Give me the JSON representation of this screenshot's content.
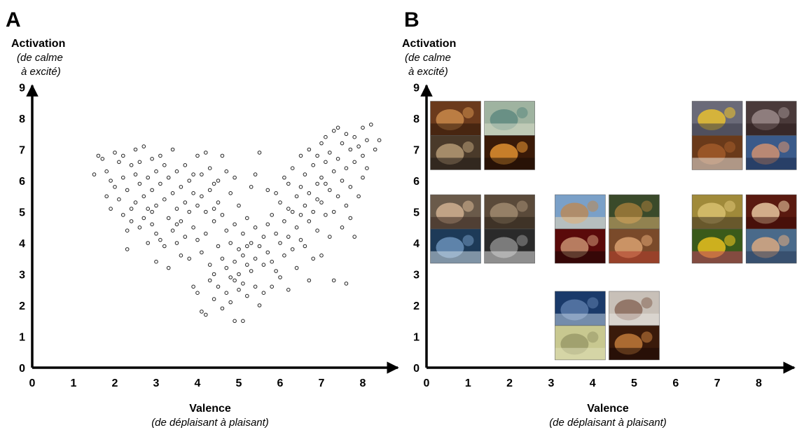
{
  "panels": {
    "a": {
      "letter": "A",
      "ylabel": "Activation",
      "ylabel_sub": [
        "(de calme",
        "à excité)"
      ],
      "xlabel": "Valence",
      "xlabel_sub": "(de déplaisant à plaisant)"
    },
    "b": {
      "letter": "B",
      "ylabel": "Activation",
      "ylabel_sub": [
        "(de calme",
        "à excité)"
      ],
      "xlabel": "Valence",
      "xlabel_sub": "(de déplaisant à plaisant)"
    }
  },
  "chart_data": [
    {
      "type": "scatter",
      "marker": "open-circle",
      "xlim": [
        0,
        9
      ],
      "ylim": [
        0,
        9
      ],
      "x_ticks": [
        0,
        1,
        2,
        3,
        4,
        5,
        6,
        7,
        8
      ],
      "y_ticks": [
        0,
        1,
        2,
        3,
        4,
        5,
        6,
        7,
        8,
        9
      ],
      "xlabel": "Valence",
      "ylabel": "Activation",
      "grid": false,
      "points": [
        [
          1.5,
          6.2
        ],
        [
          1.6,
          6.8
        ],
        [
          1.7,
          6.7
        ],
        [
          1.8,
          6.3
        ],
        [
          1.8,
          5.5
        ],
        [
          1.9,
          6.0
        ],
        [
          1.9,
          5.1
        ],
        [
          2.0,
          6.9
        ],
        [
          2.0,
          5.8
        ],
        [
          2.1,
          6.6
        ],
        [
          2.1,
          5.4
        ],
        [
          2.2,
          6.8
        ],
        [
          2.2,
          6.1
        ],
        [
          2.2,
          4.9
        ],
        [
          2.3,
          5.7
        ],
        [
          2.3,
          4.4
        ],
        [
          2.3,
          3.8
        ],
        [
          2.4,
          6.5
        ],
        [
          2.4,
          5.1
        ],
        [
          2.4,
          4.7
        ],
        [
          2.5,
          7.0
        ],
        [
          2.5,
          6.2
        ],
        [
          2.5,
          5.3
        ],
        [
          2.6,
          6.6
        ],
        [
          2.6,
          5.9
        ],
        [
          2.6,
          4.5
        ],
        [
          2.7,
          7.1
        ],
        [
          2.7,
          5.5
        ],
        [
          2.7,
          4.8
        ],
        [
          2.8,
          6.1
        ],
        [
          2.8,
          5.1
        ],
        [
          2.8,
          4.0
        ],
        [
          2.9,
          6.7
        ],
        [
          2.9,
          5.7
        ],
        [
          2.9,
          4.6
        ],
        [
          3.0,
          6.3
        ],
        [
          3.0,
          5.2
        ],
        [
          3.0,
          4.3
        ],
        [
          3.0,
          3.4
        ],
        [
          3.1,
          6.8
        ],
        [
          3.1,
          5.9
        ],
        [
          3.1,
          4.1
        ],
        [
          3.2,
          6.5
        ],
        [
          3.2,
          5.4
        ],
        [
          3.2,
          3.9
        ],
        [
          3.3,
          6.1
        ],
        [
          3.3,
          4.8
        ],
        [
          3.3,
          3.2
        ],
        [
          3.4,
          7.0
        ],
        [
          3.4,
          5.6
        ],
        [
          3.4,
          4.4
        ],
        [
          3.5,
          6.3
        ],
        [
          3.5,
          5.1
        ],
        [
          3.5,
          4.0
        ],
        [
          3.6,
          5.8
        ],
        [
          3.6,
          4.7
        ],
        [
          3.6,
          3.6
        ],
        [
          3.7,
          6.5
        ],
        [
          3.7,
          5.3
        ],
        [
          3.7,
          4.2
        ],
        [
          3.8,
          6.0
        ],
        [
          3.8,
          5.0
        ],
        [
          3.8,
          3.5
        ],
        [
          3.9,
          5.6
        ],
        [
          3.9,
          4.5
        ],
        [
          3.9,
          2.6
        ],
        [
          4.0,
          6.8
        ],
        [
          4.0,
          5.2
        ],
        [
          4.0,
          4.1
        ],
        [
          4.0,
          2.4
        ],
        [
          4.1,
          6.2
        ],
        [
          4.1,
          5.5
        ],
        [
          4.1,
          3.7
        ],
        [
          4.1,
          1.8
        ],
        [
          4.2,
          6.9
        ],
        [
          4.2,
          5.0
        ],
        [
          4.2,
          4.3
        ],
        [
          4.2,
          1.7
        ],
        [
          4.3,
          6.4
        ],
        [
          4.3,
          5.7
        ],
        [
          4.3,
          3.3
        ],
        [
          4.3,
          2.8
        ],
        [
          4.4,
          5.9
        ],
        [
          4.4,
          4.7
        ],
        [
          4.4,
          3.0
        ],
        [
          4.4,
          2.2
        ],
        [
          4.5,
          6.0
        ],
        [
          4.5,
          5.3
        ],
        [
          4.5,
          3.9
        ],
        [
          4.5,
          2.6
        ],
        [
          4.6,
          6.8
        ],
        [
          4.6,
          4.9
        ],
        [
          4.6,
          3.5
        ],
        [
          4.6,
          1.9
        ],
        [
          4.7,
          6.3
        ],
        [
          4.7,
          4.4
        ],
        [
          4.7,
          3.2
        ],
        [
          4.7,
          2.4
        ],
        [
          4.8,
          5.6
        ],
        [
          4.8,
          4.0
        ],
        [
          4.8,
          2.9
        ],
        [
          4.8,
          2.1
        ],
        [
          4.9,
          6.1
        ],
        [
          4.9,
          4.6
        ],
        [
          4.9,
          3.4
        ],
        [
          4.9,
          1.5
        ],
        [
          5.0,
          5.2
        ],
        [
          5.0,
          3.8
        ],
        [
          5.0,
          3.0
        ],
        [
          5.0,
          2.5
        ],
        [
          5.1,
          4.3
        ],
        [
          5.1,
          3.6
        ],
        [
          5.1,
          2.7
        ],
        [
          5.1,
          1.5
        ],
        [
          5.2,
          4.8
        ],
        [
          5.2,
          3.3
        ],
        [
          5.2,
          2.3
        ],
        [
          5.3,
          5.8
        ],
        [
          5.3,
          4.0
        ],
        [
          5.3,
          3.1
        ],
        [
          5.4,
          6.2
        ],
        [
          5.4,
          4.5
        ],
        [
          5.4,
          3.5
        ],
        [
          5.4,
          2.6
        ],
        [
          5.5,
          6.9
        ],
        [
          5.5,
          3.9
        ],
        [
          5.5,
          2.0
        ],
        [
          5.6,
          4.2
        ],
        [
          5.6,
          3.3
        ],
        [
          5.7,
          5.7
        ],
        [
          5.7,
          4.6
        ],
        [
          5.7,
          3.7
        ],
        [
          5.8,
          4.9
        ],
        [
          5.8,
          3.4
        ],
        [
          5.8,
          2.6
        ],
        [
          5.9,
          5.6
        ],
        [
          5.9,
          4.3
        ],
        [
          5.9,
          3.1
        ],
        [
          6.0,
          5.3
        ],
        [
          6.0,
          4.0
        ],
        [
          6.0,
          2.9
        ],
        [
          6.1,
          6.1
        ],
        [
          6.1,
          4.7
        ],
        [
          6.1,
          3.6
        ],
        [
          6.2,
          5.1
        ],
        [
          6.2,
          4.2
        ],
        [
          6.2,
          2.5
        ],
        [
          6.3,
          6.4
        ],
        [
          6.3,
          5.0
        ],
        [
          6.3,
          3.8
        ],
        [
          6.4,
          5.5
        ],
        [
          6.4,
          4.5
        ],
        [
          6.4,
          3.2
        ],
        [
          6.5,
          6.8
        ],
        [
          6.5,
          5.8
        ],
        [
          6.5,
          4.1
        ],
        [
          6.6,
          6.2
        ],
        [
          6.6,
          5.2
        ],
        [
          6.6,
          3.9
        ],
        [
          6.7,
          7.0
        ],
        [
          6.7,
          5.6
        ],
        [
          6.7,
          4.7
        ],
        [
          6.7,
          2.8
        ],
        [
          6.8,
          6.5
        ],
        [
          6.8,
          5.0
        ],
        [
          6.8,
          3.5
        ],
        [
          6.9,
          6.8
        ],
        [
          6.9,
          5.9
        ],
        [
          6.9,
          4.4
        ],
        [
          7.0,
          7.2
        ],
        [
          7.0,
          6.1
        ],
        [
          7.0,
          5.3
        ],
        [
          7.0,
          3.6
        ],
        [
          7.1,
          7.4
        ],
        [
          7.1,
          6.6
        ],
        [
          7.1,
          4.9
        ],
        [
          7.2,
          6.9
        ],
        [
          7.2,
          5.7
        ],
        [
          7.2,
          4.2
        ],
        [
          7.3,
          7.6
        ],
        [
          7.3,
          6.3
        ],
        [
          7.3,
          5.0
        ],
        [
          7.3,
          2.8
        ],
        [
          7.4,
          7.7
        ],
        [
          7.4,
          6.7
        ],
        [
          7.4,
          5.5
        ],
        [
          7.5,
          7.2
        ],
        [
          7.5,
          6.0
        ],
        [
          7.5,
          4.5
        ],
        [
          7.6,
          7.5
        ],
        [
          7.6,
          6.4
        ],
        [
          7.6,
          5.2
        ],
        [
          7.6,
          2.7
        ],
        [
          7.7,
          7.0
        ],
        [
          7.7,
          5.8
        ],
        [
          7.7,
          4.8
        ],
        [
          7.8,
          7.4
        ],
        [
          7.8,
          6.6
        ],
        [
          7.8,
          4.2
        ],
        [
          7.9,
          7.1
        ],
        [
          7.9,
          5.5
        ],
        [
          8.0,
          7.7
        ],
        [
          8.0,
          6.8
        ],
        [
          8.0,
          6.1
        ],
        [
          8.1,
          7.3
        ],
        [
          8.1,
          6.4
        ],
        [
          8.2,
          7.8
        ],
        [
          8.3,
          7.0
        ],
        [
          8.4,
          7.3
        ],
        [
          6.2,
          5.9
        ],
        [
          5.2,
          3.9
        ],
        [
          4.9,
          2.8
        ],
        [
          5.6,
          2.4
        ],
        [
          6.5,
          4.9
        ],
        [
          6.9,
          5.4
        ],
        [
          7.1,
          5.9
        ],
        [
          3.5,
          4.6
        ],
        [
          2.9,
          5.0
        ],
        [
          4.4,
          5.1
        ],
        [
          3.9,
          6.2
        ]
      ]
    },
    {
      "type": "scatter",
      "marker": "thumbnail-image",
      "xlim": [
        0,
        9
      ],
      "ylim": [
        0,
        9
      ],
      "x_ticks": [
        0,
        1,
        2,
        3,
        4,
        5,
        6,
        7,
        8
      ],
      "y_ticks": [
        0,
        1,
        2,
        3,
        4,
        5,
        6,
        7,
        8,
        9
      ],
      "xlabel": "Valence",
      "ylabel": "Activation",
      "grid": false,
      "points": [
        {
          "x": 0.7,
          "y": 8.0,
          "image": "shirtless-man-photo",
          "colors": [
            "#6b3a1c",
            "#c98a4a",
            "#2b160a"
          ]
        },
        {
          "x": 2.0,
          "y": 8.0,
          "image": "snake-photo",
          "colors": [
            "#9fb3a0",
            "#5f8a80",
            "#d8ddc9"
          ]
        },
        {
          "x": 0.7,
          "y": 6.9,
          "image": "attack-scene-photo",
          "colors": [
            "#4a3a2a",
            "#b49a74",
            "#1f1a15"
          ]
        },
        {
          "x": 2.0,
          "y": 6.9,
          "image": "fire-scene-photo",
          "colors": [
            "#3a1a08",
            "#e09030",
            "#1a0c05"
          ]
        },
        {
          "x": 0.7,
          "y": 5.0,
          "image": "couple-argument-photo",
          "colors": [
            "#6a5a4a",
            "#d0b090",
            "#3a2a22"
          ]
        },
        {
          "x": 2.0,
          "y": 5.0,
          "image": "crowd-people-photo",
          "colors": [
            "#5a4a3a",
            "#a08a70",
            "#2a2018"
          ]
        },
        {
          "x": 0.7,
          "y": 3.9,
          "image": "polluted-factory-photo",
          "colors": [
            "#1d3a58",
            "#6a90b8",
            "#d0dce6"
          ]
        },
        {
          "x": 2.0,
          "y": 3.9,
          "image": "cemetery-photo",
          "colors": [
            "#2a2a2a",
            "#8a8a8a",
            "#e0e0e0"
          ]
        },
        {
          "x": 3.7,
          "y": 5.0,
          "image": "guitarist-photo",
          "colors": [
            "#7aa0c8",
            "#b88a5a",
            "#e8d8b8"
          ]
        },
        {
          "x": 5.0,
          "y": 5.0,
          "image": "city-street-photo",
          "colors": [
            "#3a4a2a",
            "#a07a3a",
            "#d8b070"
          ]
        },
        {
          "x": 3.7,
          "y": 3.9,
          "image": "portrait-man-photo",
          "colors": [
            "#5a0a0a",
            "#c89070",
            "#1a0505"
          ]
        },
        {
          "x": 5.0,
          "y": 3.9,
          "image": "woman-crowd-photo",
          "colors": [
            "#7a4a2a",
            "#d8a070",
            "#b03a2a"
          ]
        },
        {
          "x": 3.7,
          "y": 1.9,
          "image": "iron-photo",
          "colors": [
            "#1a3a6a",
            "#5a7aa8",
            "#c0d0e0"
          ]
        },
        {
          "x": 5.0,
          "y": 1.9,
          "image": "man-painting-wall-photo",
          "colors": [
            "#c8c0b8",
            "#8a6a5a",
            "#e8e4e0"
          ]
        },
        {
          "x": 3.7,
          "y": 0.8,
          "image": "lockers-photo",
          "colors": [
            "#c8c890",
            "#9a9a6a",
            "#e0e0b8"
          ]
        },
        {
          "x": 5.0,
          "y": 0.8,
          "image": "tray-photo",
          "colors": [
            "#3a1a0a",
            "#c07a3a",
            "#1a0a05"
          ]
        },
        {
          "x": 7.0,
          "y": 8.0,
          "image": "motorcycle-racer-photo",
          "colors": [
            "#6a6a78",
            "#e8c030",
            "#3a3a48"
          ]
        },
        {
          "x": 8.3,
          "y": 8.0,
          "image": "rollercoaster-photo",
          "colors": [
            "#4a3a3a",
            "#9a8a8a",
            "#2a1a1a"
          ]
        },
        {
          "x": 7.0,
          "y": 6.9,
          "image": "chocolate-bar-photo",
          "colors": [
            "#6a3a1a",
            "#a05a2a",
            "#e8e4e0"
          ]
        },
        {
          "x": 8.3,
          "y": 6.9,
          "image": "couple-kissing-photo",
          "colors": [
            "#3a5a8a",
            "#d09070",
            "#1a2a4a"
          ]
        },
        {
          "x": 7.0,
          "y": 5.0,
          "image": "bicycle-photo",
          "colors": [
            "#a08a3a",
            "#d8c070",
            "#3a3020"
          ]
        },
        {
          "x": 8.3,
          "y": 5.0,
          "image": "rabbit-photo",
          "colors": [
            "#5a1a10",
            "#e8c8a0",
            "#3a0a05"
          ]
        },
        {
          "x": 7.0,
          "y": 3.9,
          "image": "flowers-photo",
          "colors": [
            "#3a5a1a",
            "#e8c020",
            "#c04060"
          ]
        },
        {
          "x": 8.3,
          "y": 3.9,
          "image": "children-photo",
          "colors": [
            "#4a6a8a",
            "#d8a880",
            "#2a3a5a"
          ]
        }
      ]
    }
  ]
}
